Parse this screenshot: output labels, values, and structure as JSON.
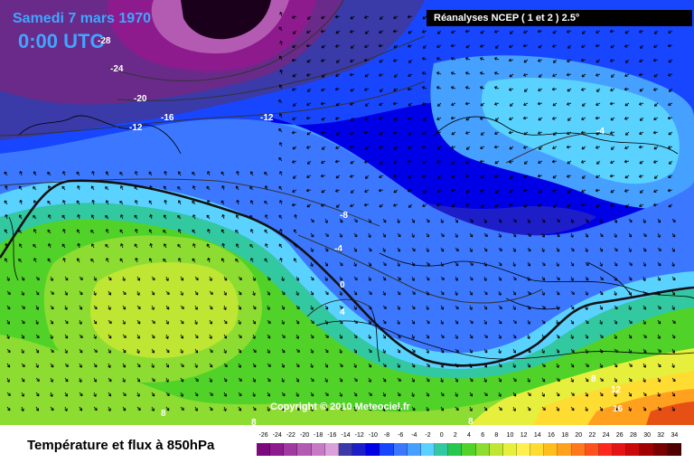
{
  "header": {
    "date": "Samedi 7 mars 1970",
    "time": "0:00 UTC",
    "source": "Réanalyses NCEP ( 1 et 2 ) 2.5°"
  },
  "copyright": "Copyright © 2010 Meteociel.fr",
  "legend": {
    "title": "Température et flux à 850hPa",
    "scale": [
      {
        "v": "-26",
        "c": "#7d0a7d"
      },
      {
        "v": "-24",
        "c": "#8e1b8e"
      },
      {
        "v": "-22",
        "c": "#a03aa0"
      },
      {
        "v": "-20",
        "c": "#b35ab3"
      },
      {
        "v": "-18",
        "c": "#c67ac6"
      },
      {
        "v": "-16",
        "c": "#d9a0d9"
      },
      {
        "v": "-14",
        "c": "#3a3aa8"
      },
      {
        "v": "-12",
        "c": "#1e1ec8"
      },
      {
        "v": "-10",
        "c": "#0000e6"
      },
      {
        "v": "-8",
        "c": "#1846ff"
      },
      {
        "v": "-6",
        "c": "#3c78ff"
      },
      {
        "v": "-4",
        "c": "#46a0ff"
      },
      {
        "v": "-2",
        "c": "#5ad2ff"
      },
      {
        "v": "0",
        "c": "#32c8a0"
      },
      {
        "v": "2",
        "c": "#28c850"
      },
      {
        "v": "4",
        "c": "#50d228"
      },
      {
        "v": "6",
        "c": "#8cdc32"
      },
      {
        "v": "8",
        "c": "#bee632"
      },
      {
        "v": "10",
        "c": "#e6f03c"
      },
      {
        "v": "12",
        "c": "#fff050"
      },
      {
        "v": "14",
        "c": "#ffdc32"
      },
      {
        "v": "16",
        "c": "#ffbe1e"
      },
      {
        "v": "18",
        "c": "#ffa01e"
      },
      {
        "v": "20",
        "c": "#ff781e"
      },
      {
        "v": "22",
        "c": "#ff501e"
      },
      {
        "v": "24",
        "c": "#ff281e"
      },
      {
        "v": "26",
        "c": "#e61414"
      },
      {
        "v": "28",
        "c": "#c80a0a"
      },
      {
        "v": "30",
        "c": "#a00000"
      },
      {
        "v": "32",
        "c": "#780000"
      },
      {
        "v": "34",
        "c": "#500000"
      }
    ]
  },
  "contours": {
    "c1": "-28",
    "c2": "-24",
    "c3": "-20",
    "c4": "-16",
    "c5": "-12",
    "c6": "-12",
    "c7": "-8",
    "c8": "-4",
    "c9": "0",
    "c10": "4",
    "c11": "-4",
    "c12": "8",
    "c13": "8",
    "c14": "8",
    "c15": "8",
    "c16": "12",
    "c17": "16"
  }
}
